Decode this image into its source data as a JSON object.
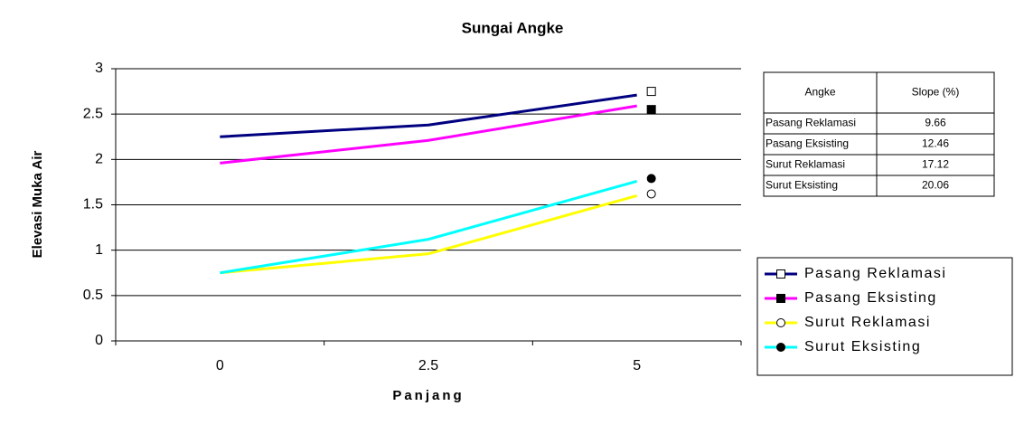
{
  "chart_data": {
    "type": "line",
    "title": "Sungai Angke",
    "x_label": "Panjang",
    "y_label": "Elevasi Muka Air",
    "categories": [
      "0",
      "2.5",
      "5"
    ],
    "ylim": [
      0,
      3
    ],
    "yticks": [
      0,
      0.5,
      1,
      1.5,
      2,
      2.5,
      3
    ],
    "grid": true,
    "legend": "bottom-right",
    "series": [
      {
        "name": "Pasang Reklamasi",
        "color": "#000080",
        "values": [
          2.25,
          2.38,
          2.71
        ],
        "marker": "square-open",
        "marker_value": 2.75
      },
      {
        "name": "Pasang Eksisting",
        "color": "#ff00ff",
        "values": [
          1.96,
          2.21,
          2.59
        ],
        "marker": "square-filled",
        "marker_value": 2.55
      },
      {
        "name": "Surut Reklamasi",
        "color": "#ffff00",
        "values": [
          0.75,
          0.96,
          1.6
        ],
        "marker": "circle-open",
        "marker_value": 1.62
      },
      {
        "name": "Surut Eksisting",
        "color": "#00ffff",
        "values": [
          0.75,
          1.12,
          1.76
        ],
        "marker": "circle-filled",
        "marker_value": 1.79
      }
    ]
  },
  "table": {
    "header": [
      "Angke",
      "Slope (%)"
    ],
    "rows": [
      [
        "Pasang Reklamasi",
        "9.66"
      ],
      [
        "Pasang Eksisting",
        "12.46"
      ],
      [
        "Surut Reklamasi",
        "17.12"
      ],
      [
        "Surut Eksisting",
        "20.06"
      ]
    ]
  }
}
